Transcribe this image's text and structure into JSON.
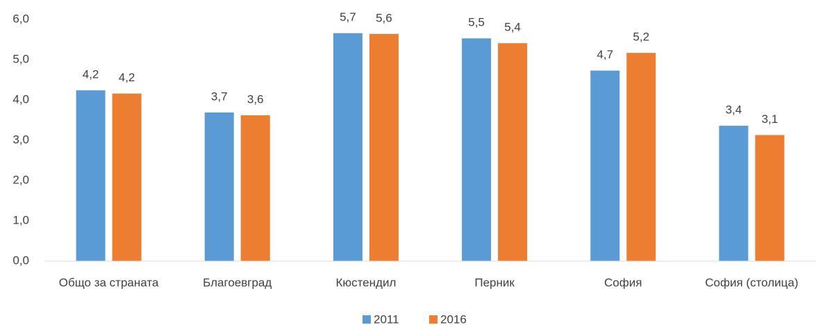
{
  "chart_data": {
    "type": "bar",
    "categories": [
      "Общо за страната",
      "Благоевград",
      "Кюстендил",
      "Перник",
      "София",
      "София (столица)"
    ],
    "series": [
      {
        "name": "2011",
        "color": "#5b9bd5",
        "values": [
          4.24,
          3.69,
          5.66,
          5.53,
          4.73,
          3.36
        ],
        "value_labels": [
          "4,2",
          "3,7",
          "5,7",
          "5,5",
          "4,7",
          "3,4"
        ]
      },
      {
        "name": "2016",
        "color": "#ed7d31",
        "values": [
          4.16,
          3.62,
          5.64,
          5.41,
          5.17,
          3.13
        ],
        "value_labels": [
          "4,2",
          "3,6",
          "5,6",
          "5,4",
          "5,2",
          "3,1"
        ]
      }
    ],
    "ylim": [
      0,
      6
    ],
    "yticks": [
      {
        "value": 0,
        "label": "0,0"
      },
      {
        "value": 1,
        "label": "1,0"
      },
      {
        "value": 2,
        "label": "2,0"
      },
      {
        "value": 3,
        "label": "3,0"
      },
      {
        "value": 4,
        "label": "4,0"
      },
      {
        "value": 5,
        "label": "5,0"
      },
      {
        "value": 6,
        "label": "6,0"
      }
    ],
    "grid": false,
    "legend": "bottom"
  }
}
